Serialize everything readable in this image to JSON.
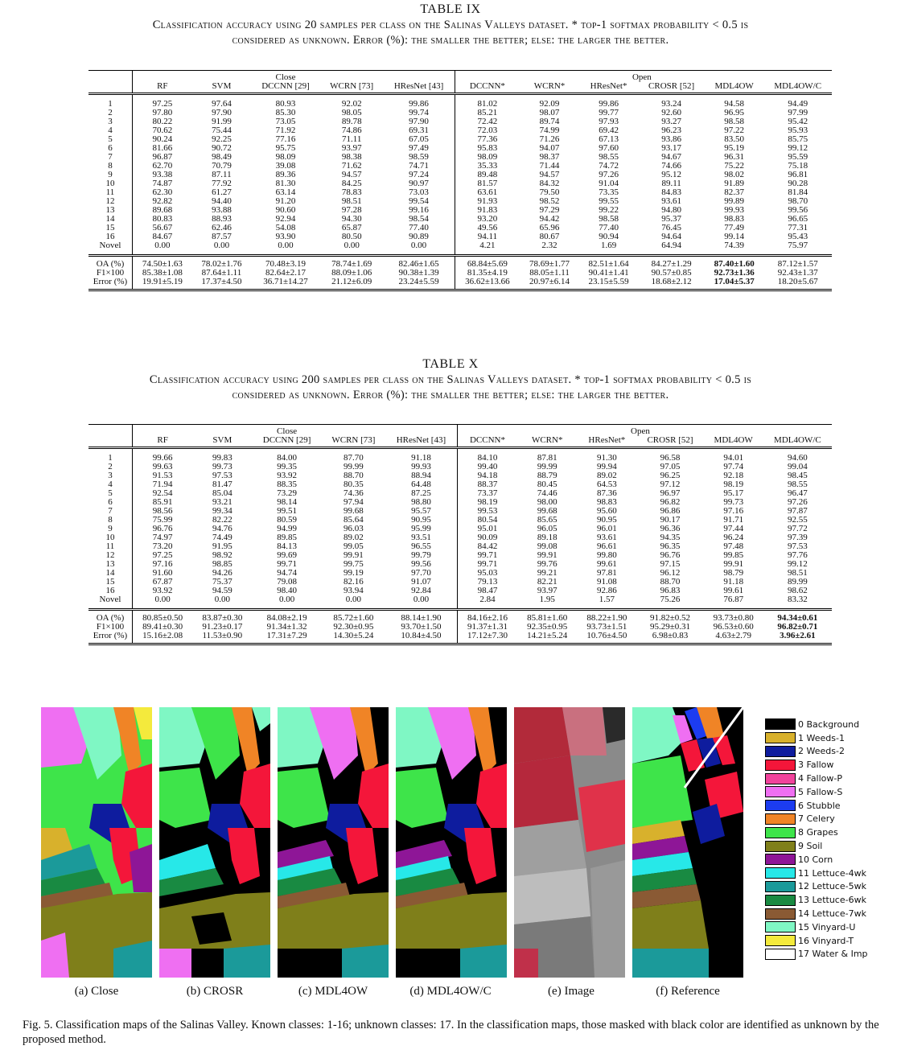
{
  "table9": {
    "number": "TABLE IX",
    "caption1": "Classification accuracy using 20 samples per class on the Salinas Valleys dataset. * top-1 softmax probability < 0.5 is",
    "caption2": "considered as unknown. Error (%): the smaller the better; else: the larger the better.",
    "group_close": "Close",
    "group_open": "Open",
    "headers": [
      "RF",
      "SVM",
      "DCCNN [29]",
      "WCRN [73]",
      "HResNet [43]",
      "DCCNN*",
      "WCRN*",
      "HResNet*",
      "CROSR [52]",
      "MDL4OW",
      "MDL4OW/C"
    ],
    "rows": [
      [
        "1",
        "97.25",
        "97.64",
        "80.93",
        "92.02",
        "99.86",
        "81.02",
        "92.09",
        "99.86",
        "93.24",
        "94.58",
        "94.49"
      ],
      [
        "2",
        "97.80",
        "97.90",
        "85.30",
        "98.05",
        "99.74",
        "85.21",
        "98.07",
        "99.77",
        "92.60",
        "96.95",
        "97.99"
      ],
      [
        "3",
        "80.22",
        "91.99",
        "73.05",
        "89.78",
        "97.90",
        "72.42",
        "89.74",
        "97.93",
        "93.27",
        "98.58",
        "95.42"
      ],
      [
        "4",
        "70.62",
        "75.44",
        "71.92",
        "74.86",
        "69.31",
        "72.03",
        "74.99",
        "69.42",
        "96.23",
        "97.22",
        "95.93"
      ],
      [
        "5",
        "90.24",
        "92.25",
        "77.16",
        "71.11",
        "67.05",
        "77.36",
        "71.26",
        "67.13",
        "93.86",
        "83.50",
        "85.75"
      ],
      [
        "6",
        "81.66",
        "90.72",
        "95.75",
        "93.97",
        "97.49",
        "95.83",
        "94.07",
        "97.60",
        "93.17",
        "95.19",
        "99.12"
      ],
      [
        "7",
        "96.87",
        "98.49",
        "98.09",
        "98.38",
        "98.59",
        "98.09",
        "98.37",
        "98.55",
        "94.67",
        "96.31",
        "95.59"
      ],
      [
        "8",
        "62.70",
        "70.79",
        "39.08",
        "71.62",
        "74.71",
        "35.33",
        "71.44",
        "74.72",
        "74.66",
        "75.22",
        "75.18"
      ],
      [
        "9",
        "93.38",
        "87.11",
        "89.36",
        "94.57",
        "97.24",
        "89.48",
        "94.57",
        "97.26",
        "95.12",
        "98.02",
        "96.81"
      ],
      [
        "10",
        "74.87",
        "77.92",
        "81.30",
        "84.25",
        "90.97",
        "81.57",
        "84.32",
        "91.04",
        "89.11",
        "91.89",
        "90.28"
      ],
      [
        "11",
        "62.30",
        "61.27",
        "63.14",
        "78.83",
        "73.03",
        "63.61",
        "79.50",
        "73.35",
        "84.83",
        "82.37",
        "81.84"
      ],
      [
        "12",
        "92.82",
        "94.40",
        "91.20",
        "98.51",
        "99.54",
        "91.93",
        "98.52",
        "99.55",
        "93.61",
        "99.89",
        "98.70"
      ],
      [
        "13",
        "89.68",
        "93.88",
        "90.60",
        "97.28",
        "99.16",
        "91.83",
        "97.29",
        "99.22",
        "94.80",
        "99.93",
        "99.56"
      ],
      [
        "14",
        "80.83",
        "88.93",
        "92.94",
        "94.30",
        "98.54",
        "93.20",
        "94.42",
        "98.58",
        "95.37",
        "98.83",
        "96.65"
      ],
      [
        "15",
        "56.67",
        "62.46",
        "54.08",
        "65.87",
        "77.40",
        "49.56",
        "65.96",
        "77.40",
        "76.45",
        "77.49",
        "77.31"
      ],
      [
        "16",
        "84.67",
        "87.57",
        "93.90",
        "80.50",
        "90.89",
        "94.11",
        "80.67",
        "90.94",
        "94.64",
        "99.14",
        "95.43"
      ],
      [
        "Novel",
        "0.00",
        "0.00",
        "0.00",
        "0.00",
        "0.00",
        "4.21",
        "2.32",
        "1.69",
        "64.94",
        "74.39",
        "75.97"
      ]
    ],
    "summary": [
      [
        "OA (%)",
        "74.50±1.63",
        "78.02±1.76",
        "70.48±3.19",
        "78.74±1.69",
        "82.46±1.65",
        "68.84±5.69",
        "78.69±1.77",
        "82.51±1.64",
        "84.27±1.29",
        "87.40±1.60",
        "87.12±1.57"
      ],
      [
        "F1×100",
        "85.38±1.08",
        "87.64±1.11",
        "82.64±2.17",
        "88.09±1.06",
        "90.38±1.39",
        "81.35±4.19",
        "88.05±1.11",
        "90.41±1.41",
        "90.57±0.85",
        "92.73±1.36",
        "92.43±1.37"
      ],
      [
        "Error (%)",
        "19.91±5.19",
        "17.37±4.50",
        "36.71±14.27",
        "21.12±6.09",
        "23.24±5.59",
        "36.62±13.66",
        "20.97±6.14",
        "23.15±5.59",
        "18.68±2.12",
        "17.04±5.37",
        "18.20±5.67"
      ]
    ],
    "bold_col": 10
  },
  "table10": {
    "number": "TABLE X",
    "caption1": "Classification accuracy using 200 samples per class on the Salinas Valleys dataset. * top-1 softmax probability < 0.5 is",
    "caption2": "considered as unknown. Error (%): the smaller the better; else: the larger the better.",
    "group_close": "Close",
    "group_open": "Open",
    "headers": [
      "RF",
      "SVM",
      "DCCNN [29]",
      "WCRN [73]",
      "HResNet [43]",
      "DCCNN*",
      "WCRN*",
      "HResNet*",
      "CROSR [52]",
      "MDL4OW",
      "MDL4OW/C"
    ],
    "rows": [
      [
        "1",
        "99.66",
        "99.83",
        "84.00",
        "87.70",
        "91.18",
        "84.10",
        "87.81",
        "91.30",
        "96.58",
        "94.01",
        "94.60"
      ],
      [
        "2",
        "99.63",
        "99.73",
        "99.35",
        "99.99",
        "99.93",
        "99.40",
        "99.99",
        "99.94",
        "97.05",
        "97.74",
        "99.04"
      ],
      [
        "3",
        "91.53",
        "97.53",
        "93.92",
        "88.70",
        "88.94",
        "94.18",
        "88.79",
        "89.02",
        "96.25",
        "92.18",
        "98.45"
      ],
      [
        "4",
        "71.94",
        "81.47",
        "88.35",
        "80.35",
        "64.48",
        "88.37",
        "80.45",
        "64.53",
        "97.12",
        "98.19",
        "98.55"
      ],
      [
        "5",
        "92.54",
        "85.04",
        "73.29",
        "74.36",
        "87.25",
        "73.37",
        "74.46",
        "87.36",
        "96.97",
        "95.17",
        "96.47"
      ],
      [
        "6",
        "85.91",
        "93.21",
        "98.14",
        "97.94",
        "98.80",
        "98.19",
        "98.00",
        "98.83",
        "96.82",
        "99.73",
        "97.26"
      ],
      [
        "7",
        "98.56",
        "99.34",
        "99.51",
        "99.68",
        "95.57",
        "99.53",
        "99.68",
        "95.60",
        "96.86",
        "97.16",
        "97.87"
      ],
      [
        "8",
        "75.99",
        "82.22",
        "80.59",
        "85.64",
        "90.95",
        "80.54",
        "85.65",
        "90.95",
        "90.17",
        "91.71",
        "92.55"
      ],
      [
        "9",
        "96.76",
        "94.76",
        "94.99",
        "96.03",
        "95.99",
        "95.01",
        "96.05",
        "96.01",
        "96.36",
        "97.44",
        "97.72"
      ],
      [
        "10",
        "74.97",
        "74.49",
        "89.85",
        "89.02",
        "93.51",
        "90.09",
        "89.18",
        "93.61",
        "94.35",
        "96.24",
        "97.39"
      ],
      [
        "11",
        "73.20",
        "91.95",
        "84.13",
        "99.05",
        "96.55",
        "84.42",
        "99.08",
        "96.61",
        "96.35",
        "97.48",
        "97.53"
      ],
      [
        "12",
        "97.25",
        "98.92",
        "99.69",
        "99.91",
        "99.79",
        "99.71",
        "99.91",
        "99.80",
        "96.76",
        "99.85",
        "97.76"
      ],
      [
        "13",
        "97.16",
        "98.85",
        "99.71",
        "99.75",
        "99.56",
        "99.71",
        "99.76",
        "99.61",
        "97.15",
        "99.91",
        "99.12"
      ],
      [
        "14",
        "91.60",
        "94.26",
        "94.74",
        "99.19",
        "97.70",
        "95.03",
        "99.21",
        "97.81",
        "96.12",
        "98.79",
        "98.51"
      ],
      [
        "15",
        "67.87",
        "75.37",
        "79.08",
        "82.16",
        "91.07",
        "79.13",
        "82.21",
        "91.08",
        "88.70",
        "91.18",
        "89.99"
      ],
      [
        "16",
        "93.92",
        "94.59",
        "98.40",
        "93.94",
        "92.84",
        "98.47",
        "93.97",
        "92.86",
        "96.83",
        "99.61",
        "98.62"
      ],
      [
        "Novel",
        "0.00",
        "0.00",
        "0.00",
        "0.00",
        "0.00",
        "2.84",
        "1.95",
        "1.57",
        "75.26",
        "76.87",
        "83.32"
      ]
    ],
    "summary": [
      [
        "OA (%)",
        "80.85±0.50",
        "83.87±0.30",
        "84.08±2.19",
        "85.72±1.60",
        "88.14±1.90",
        "84.16±2.16",
        "85.81±1.60",
        "88.22±1.90",
        "91.82±0.52",
        "93.73±0.80",
        "94.34±0.61"
      ],
      [
        "F1×100",
        "89.41±0.30",
        "91.23±0.17",
        "91.34±1.32",
        "92.30±0.95",
        "93.70±1.50",
        "91.37±1.31",
        "92.35±0.95",
        "93.73±1.51",
        "95.29±0.31",
        "96.53±0.60",
        "96.82±0.71"
      ],
      [
        "Error (%)",
        "15.16±2.08",
        "11.53±0.90",
        "17.31±7.29",
        "14.30±5.24",
        "10.84±4.50",
        "17.12±7.30",
        "14.21±5.24",
        "10.76±4.50",
        "6.98±0.83",
        "4.63±2.79",
        "3.96±2.61"
      ]
    ],
    "bold_col": 11
  },
  "figure": {
    "subcaptions": [
      "(a) Close",
      "(b) CROSR",
      "(c) MDL4OW",
      "(d) MDL4OW/C",
      "(e) Image",
      "(f) Reference"
    ],
    "legend": [
      {
        "label": "0 Background",
        "color": "#000000"
      },
      {
        "label": "1 Weeds-1",
        "color": "#d8b12c"
      },
      {
        "label": "2 Weeds-2",
        "color": "#0e1c9e"
      },
      {
        "label": "3 Fallow",
        "color": "#f4163a"
      },
      {
        "label": "4 Fallow-P",
        "color": "#f1439c"
      },
      {
        "label": "5 Fallow-S",
        "color": "#ef6ff2"
      },
      {
        "label": "6 Stubble",
        "color": "#1c3cf0"
      },
      {
        "label": "7 Celery",
        "color": "#f08426"
      },
      {
        "label": "8 Grapes",
        "color": "#3ee44a"
      },
      {
        "label": "9 Soil",
        "color": "#7f7f1a"
      },
      {
        "label": "10 Corn",
        "color": "#8e1697"
      },
      {
        "label": "11 Lettuce-4wk",
        "color": "#27e8e8"
      },
      {
        "label": "12 Lettuce-5wk",
        "color": "#1b9a9a"
      },
      {
        "label": "13 Lettuce-6wk",
        "color": "#198a42"
      },
      {
        "label": "14 Lettuce-7wk",
        "color": "#8a5a34"
      },
      {
        "label": "15 Vinyard-U",
        "color": "#7ff7c4"
      },
      {
        "label": "16 Vinyard-T",
        "color": "#f4ea3c"
      },
      {
        "label": "17 Water & Imp",
        "color": "#ffffff"
      }
    ],
    "caption": "Fig. 5.   Classification maps of the Salinas Valley. Known classes: 1-16; unknown classes: 17. In the classification maps, those masked with black color are identified as unknown by the proposed method."
  }
}
